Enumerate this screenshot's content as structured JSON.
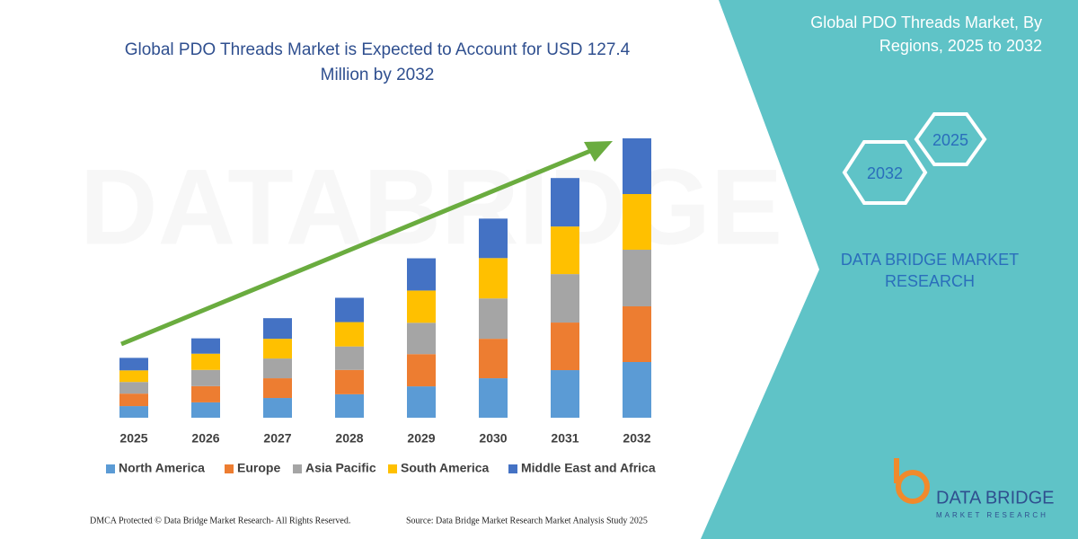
{
  "chart_data": {
    "type": "bar",
    "stacked": true,
    "title": "Global PDO Threads Market is Expected to Account for USD 127.4 Million by 2032",
    "categories": [
      "2025",
      "2026",
      "2027",
      "2028",
      "2029",
      "2030",
      "2031",
      "2032"
    ],
    "series": [
      {
        "name": "North America",
        "color": "#5b9bd5",
        "values": [
          5.3,
          7.0,
          9.0,
          10.7,
          14.3,
          18.0,
          21.7,
          25.4
        ]
      },
      {
        "name": "Europe",
        "color": "#ed7d31",
        "values": [
          5.7,
          7.4,
          9.0,
          11.1,
          14.7,
          18.0,
          21.7,
          25.4
        ]
      },
      {
        "name": "Asia Pacific",
        "color": "#a5a5a5",
        "values": [
          5.3,
          7.4,
          9.0,
          10.7,
          14.3,
          18.4,
          22.1,
          25.8
        ]
      },
      {
        "name": "South America",
        "color": "#ffc000",
        "values": [
          5.3,
          7.4,
          9.0,
          11.1,
          14.7,
          18.4,
          21.7,
          25.4
        ]
      },
      {
        "name": "Middle East and Africa",
        "color": "#4472c4",
        "values": [
          5.7,
          7.0,
          9.4,
          11.1,
          14.7,
          18.0,
          22.1,
          25.4
        ]
      }
    ],
    "legend": "bottom"
  },
  "side_panel": {
    "title": "Global PDO Threads Market, By Regions, 2025 to 2032",
    "hexagons": [
      "2025",
      "2032"
    ],
    "brand": "DATA BRIDGE MARKET RESEARCH"
  },
  "logo": {
    "name": "DATA BRIDGE",
    "tagline": "MARKET RESEARCH"
  },
  "footer": {
    "left": "DMCA Protected © Data Bridge Market Research-  All Rights Reserved.",
    "right": "Source: Data Bridge Market Research  Market Analysis Study 2025"
  }
}
